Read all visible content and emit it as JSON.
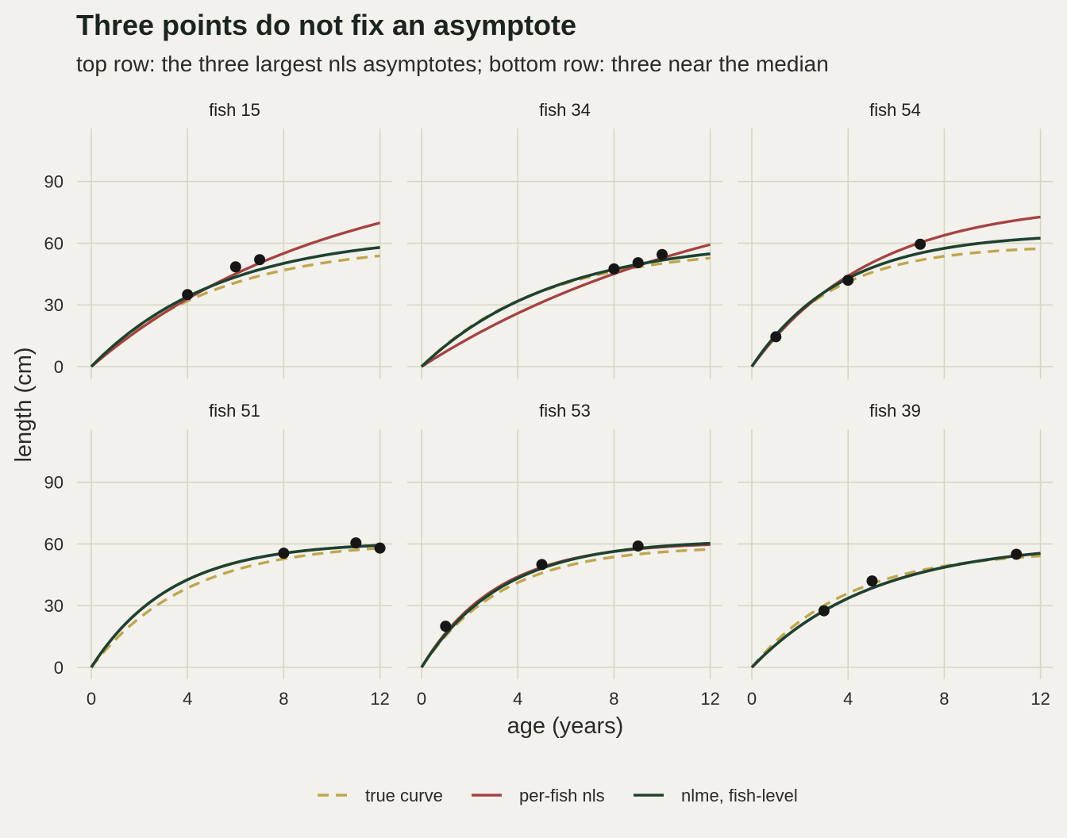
{
  "chart_data": {
    "type": "line",
    "title": "Three points do not fix an asymptote",
    "subtitle": "top row: the three largest nls asymptotes; bottom row: three near the median",
    "xlabel": "age (years)",
    "ylabel": "length (cm)",
    "xlim": [
      0,
      12
    ],
    "ylim": [
      0,
      110
    ],
    "x_ticks": [
      0,
      4,
      8,
      12
    ],
    "y_ticks": [
      0,
      30,
      60,
      90
    ],
    "grid": true,
    "legend_position": "bottom",
    "legend": [
      {
        "key": "true",
        "label": "true curve"
      },
      {
        "key": "nls",
        "label": "per-fish nls"
      },
      {
        "key": "nlme",
        "label": "nlme, fish-level"
      }
    ],
    "colors": {
      "true": "#bfa650",
      "nls": "#a54343",
      "nlme": "#1f4230",
      "points": "#161616",
      "background": "#f2f1eb",
      "grid": "#d6d6c6"
    },
    "panels": [
      {
        "label": "fish 15",
        "points": [
          [
            4,
            35
          ],
          [
            6,
            48.5
          ],
          [
            7,
            52
          ]
        ],
        "curves": {
          "true": {
            "Linf": 60,
            "k": 0.19
          },
          "nls": {
            "Linf": 100,
            "k": 0.1
          },
          "nlme": {
            "Linf": 65,
            "k": 0.185
          }
        }
      },
      {
        "label": "fish 34",
        "points": [
          [
            8,
            47.5
          ],
          [
            9,
            50.5
          ],
          [
            10,
            54.5
          ]
        ],
        "curves": {
          "true": {
            "Linf": 58,
            "k": 0.2
          },
          "nls": {
            "Linf": 100,
            "k": 0.075
          },
          "nlme": {
            "Linf": 62,
            "k": 0.18
          }
        }
      },
      {
        "label": "fish 54",
        "points": [
          [
            1,
            14.5
          ],
          [
            4,
            42
          ],
          [
            7,
            59.5
          ]
        ],
        "curves": {
          "true": {
            "Linf": 59,
            "k": 0.3
          },
          "nls": {
            "Linf": 80,
            "k": 0.2
          },
          "nlme": {
            "Linf": 65,
            "k": 0.27
          }
        }
      },
      {
        "label": "fish 51",
        "points": [
          [
            8,
            55.5
          ],
          [
            11,
            60.5
          ],
          [
            12,
            58
          ]
        ],
        "curves": {
          "true": {
            "Linf": 61,
            "k": 0.25
          },
          "nls": {
            "Linf": 61,
            "k": 0.3
          },
          "nlme": {
            "Linf": 61,
            "k": 0.3
          }
        }
      },
      {
        "label": "fish 53",
        "points": [
          [
            1,
            20
          ],
          [
            5,
            50
          ],
          [
            9,
            59
          ]
        ],
        "curves": {
          "true": {
            "Linf": 59,
            "k": 0.3
          },
          "nls": {
            "Linf": 61,
            "k": 0.32
          },
          "nlme": {
            "Linf": 62,
            "k": 0.3
          }
        }
      },
      {
        "label": "fish 39",
        "points": [
          [
            3,
            27.5
          ],
          [
            5,
            42
          ],
          [
            11,
            55
          ]
        ],
        "curves": {
          "true": {
            "Linf": 57,
            "k": 0.25
          },
          "nls": {
            "Linf": 61,
            "k": 0.2
          },
          "nlme": {
            "Linf": 61,
            "k": 0.2
          }
        }
      }
    ]
  }
}
